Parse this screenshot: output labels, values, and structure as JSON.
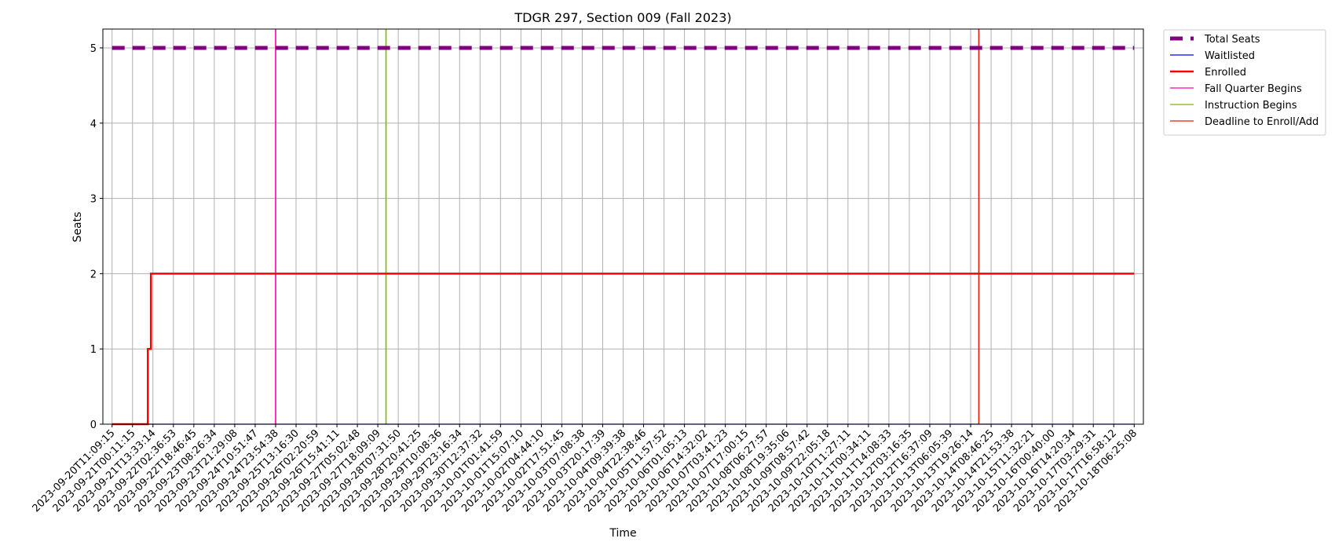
{
  "chart_data": {
    "type": "line",
    "title": "TDGR 297, Section 009 (Fall 2023)",
    "xlabel": "Time",
    "ylabel": "Seats",
    "ylim": [
      0,
      5.25
    ],
    "yticks": [
      0,
      1,
      2,
      3,
      4,
      5
    ],
    "grid": true,
    "legend_position": "outside top-right",
    "x_categories": [
      "2023-09-20T11:09:15",
      "2023-09-21T00:11:15",
      "2023-09-21T13:33:14",
      "2023-09-22T02:36:53",
      "2023-09-22T18:46:45",
      "2023-09-23T08:26:34",
      "2023-09-23T21:29:08",
      "2023-09-24T10:51:47",
      "2023-09-24T23:54:38",
      "2023-09-25T13:16:30",
      "2023-09-26T02:20:59",
      "2023-09-26T15:41:11",
      "2023-09-27T05:02:48",
      "2023-09-27T18:09:09",
      "2023-09-28T07:31:50",
      "2023-09-28T20:41:25",
      "2023-09-29T10:08:36",
      "2023-09-29T23:16:34",
      "2023-09-30T12:37:32",
      "2023-10-01T01:41:59",
      "2023-10-01T15:07:10",
      "2023-10-02T04:44:10",
      "2023-10-02T17:51:45",
      "2023-10-03T07:08:38",
      "2023-10-03T20:17:39",
      "2023-10-04T09:39:38",
      "2023-10-04T22:38:46",
      "2023-10-05T11:57:52",
      "2023-10-06T01:05:13",
      "2023-10-06T14:32:02",
      "2023-10-07T03:41:23",
      "2023-10-07T17:00:15",
      "2023-10-08T06:27:57",
      "2023-10-08T19:35:06",
      "2023-10-09T08:57:42",
      "2023-10-09T22:05:18",
      "2023-10-10T11:27:11",
      "2023-10-11T00:34:11",
      "2023-10-11T14:08:33",
      "2023-10-12T03:16:35",
      "2023-10-12T16:37:09",
      "2023-10-13T06:05:39",
      "2023-10-13T19:26:14",
      "2023-10-14T08:46:25",
      "2023-10-14T21:53:38",
      "2023-10-15T11:32:21",
      "2023-10-16T00:40:00",
      "2023-10-16T14:20:34",
      "2023-10-17T03:29:31",
      "2023-10-17T16:58:12",
      "2023-10-18T06:25:08"
    ],
    "series": [
      {
        "name": "Total Seats",
        "color": "#800080",
        "style": "dashed",
        "x": [
          0,
          50
        ],
        "values": [
          5,
          5
        ]
      },
      {
        "name": "Waitlisted",
        "color": "#0000ff",
        "style": "solid",
        "x": [
          0,
          50
        ],
        "values": [
          0,
          0
        ]
      },
      {
        "name": "Enrolled",
        "color": "#ff0000",
        "style": "solid",
        "step": true,
        "x": [
          0,
          1.75,
          1.75,
          1.9,
          1.9,
          50
        ],
        "values": [
          0,
          0,
          1,
          1,
          2,
          2
        ]
      }
    ],
    "events": [
      {
        "name": "Fall Quarter Begins",
        "color": "#ff00aa",
        "x": 8
      },
      {
        "name": "Instruction Begins",
        "color": "#7fb800",
        "x": 13.4
      },
      {
        "name": "Deadline to Enroll/Add",
        "color": "#dd2200",
        "x": 42.4
      }
    ]
  }
}
